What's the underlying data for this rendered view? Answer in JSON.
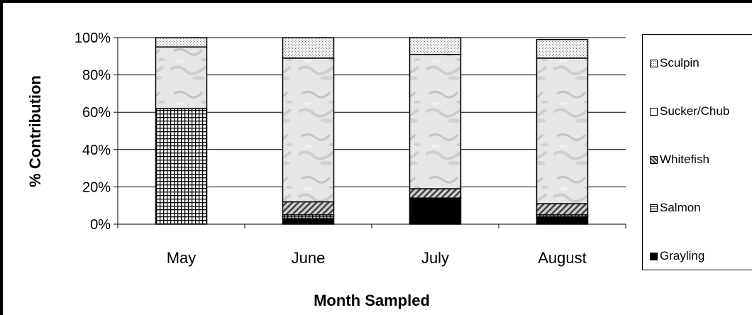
{
  "chart_data": {
    "type": "bar",
    "stacked": true,
    "percent": true,
    "categories": [
      "May",
      "June",
      "July",
      "August"
    ],
    "xlabel": "Month Sampled",
    "ylabel": "% Contribution",
    "ylim": [
      0,
      100
    ],
    "yticks": [
      "0%",
      "20%",
      "40%",
      "60%",
      "80%",
      "100%"
    ],
    "grid": "horizontal",
    "legend_position": "right",
    "series": [
      {
        "name": "Grayling",
        "values": [
          0,
          3,
          14,
          4
        ],
        "pattern": "solid-black"
      },
      {
        "name": "Salmon",
        "values": [
          62,
          2,
          0,
          1
        ],
        "pattern": "cross-hatch"
      },
      {
        "name": "Whitefish",
        "values": [
          0,
          7,
          5,
          6
        ],
        "pattern": "diagonal-hatch"
      },
      {
        "name": "Sucker/Chub",
        "values": [
          33,
          77,
          72,
          78
        ],
        "pattern": "gray-texture"
      },
      {
        "name": "Sculpin",
        "values": [
          5,
          11,
          9,
          10
        ],
        "pattern": "dotted"
      }
    ]
  }
}
